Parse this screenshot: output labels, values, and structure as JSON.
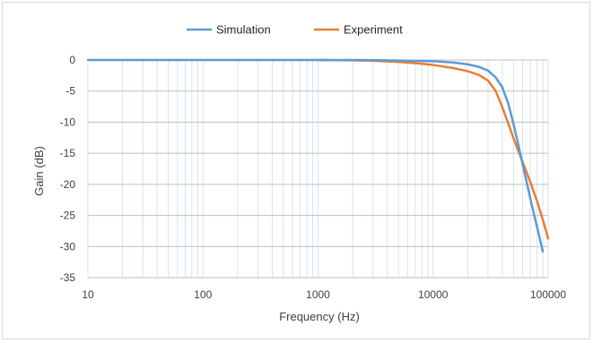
{
  "chart_data": {
    "type": "line",
    "xlabel": "Frequency (Hz)",
    "ylabel": "Gain (dB)",
    "x_scale": "log",
    "xlim": [
      10,
      100000
    ],
    "ylim": [
      -35,
      0
    ],
    "x_tick_labels": [
      "10",
      "100",
      "1000",
      "10000",
      "100000"
    ],
    "y_tick_labels": [
      "0",
      "-5",
      "-10",
      "-15",
      "-20",
      "-25",
      "-30",
      "-35"
    ],
    "legend_position": "top-center",
    "grid": "vertical minor and major gridlines",
    "series": [
      {
        "name": "Simulation",
        "color": "#5b9bd5",
        "x": [
          10,
          100,
          1000,
          3000,
          10000,
          15000,
          20000,
          25000,
          30000,
          35000,
          40000,
          45000,
          50000,
          55000,
          60000,
          65000,
          70000,
          75000,
          80000,
          85000,
          90000
        ],
        "y": [
          0,
          0,
          0,
          -0.02,
          -0.2,
          -0.4,
          -0.7,
          -1.1,
          -1.7,
          -2.8,
          -4.4,
          -7.0,
          -10.3,
          -13.6,
          -16.8,
          -19.6,
          -22.3,
          -24.7,
          -26.8,
          -28.9,
          -30.8
        ]
      },
      {
        "name": "Experiment",
        "color": "#ed7d31",
        "x": [
          1000,
          2000,
          3000,
          5000,
          7000,
          10000,
          15000,
          20000,
          25000,
          30000,
          35000,
          40000,
          45000,
          50000,
          55000,
          60000,
          70000,
          80000,
          90000,
          100000
        ],
        "y": [
          0,
          -0.05,
          -0.12,
          -0.3,
          -0.5,
          -0.8,
          -1.3,
          -1.8,
          -2.4,
          -3.3,
          -5.0,
          -7.6,
          -10.2,
          -12.6,
          -14.6,
          -16.4,
          -19.6,
          -22.7,
          -25.7,
          -28.7
        ]
      }
    ]
  }
}
